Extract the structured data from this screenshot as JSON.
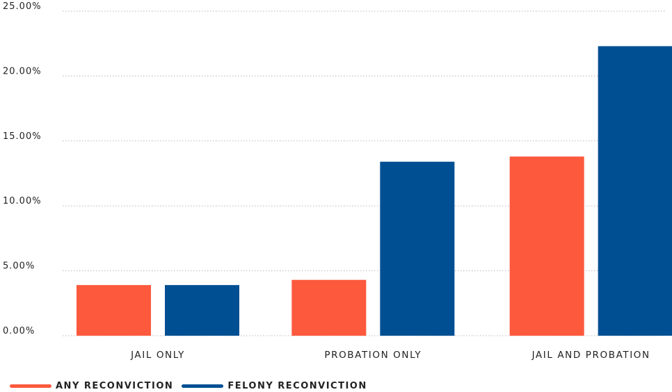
{
  "chart_data": {
    "type": "bar",
    "categories": [
      "JAIL ONLY",
      "PROBATION ONLY",
      "JAIL AND PROBATION"
    ],
    "series": [
      {
        "name": "ANY RECONVICTION",
        "values": [
          3.9,
          4.3,
          13.8
        ],
        "color": "#FD593D"
      },
      {
        "name": "FELONY RECONVICTION",
        "values": [
          3.9,
          13.4,
          22.3
        ],
        "color": "#004F93"
      }
    ],
    "yticks": [
      "0.00%",
      "5.00%",
      "10.00%",
      "15.00%",
      "20.00%",
      "25.00%"
    ],
    "ylim": [
      0,
      25
    ],
    "grid": true,
    "legend_position": "bottom-left"
  }
}
